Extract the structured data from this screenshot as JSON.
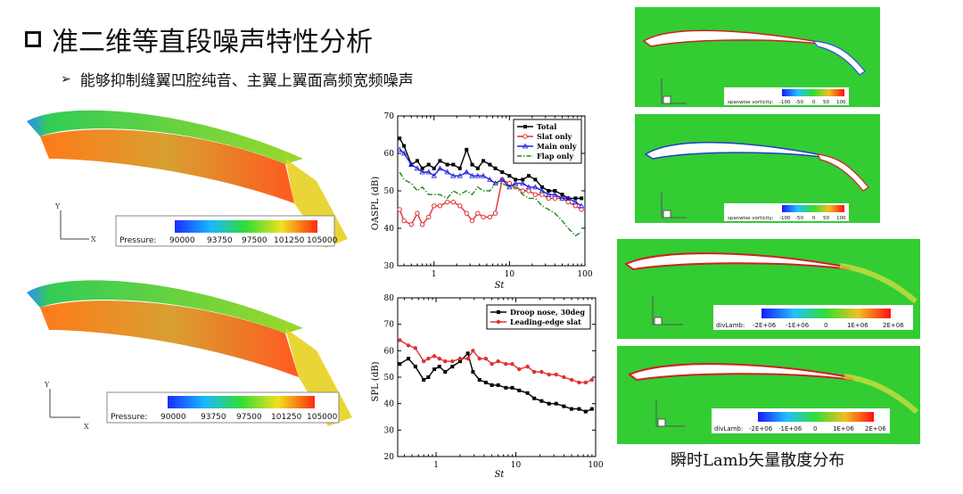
{
  "header": {
    "title": "准二维等直段噪声特性分析",
    "bullet": "能够抑制缝翼凹腔纯音、主翼上翼面高频宽频噪声"
  },
  "wing_views": [
    {
      "colorbar_label": "Pressure:",
      "ticks": [
        "90000",
        "93750",
        "97500",
        "101250",
        "105000"
      ]
    },
    {
      "colorbar_label": "Pressure:",
      "ticks": [
        "90000",
        "93750",
        "97500",
        "101250",
        "105000"
      ]
    }
  ],
  "vorticity_panels": [
    {
      "colorbar_label": "spanwise vorticity:",
      "ticks": [
        "-100",
        "-50",
        "0",
        "50",
        "100"
      ]
    },
    {
      "colorbar_label": "spanwise vorticity:",
      "ticks": [
        "-100",
        "-50",
        "0",
        "50",
        "100"
      ]
    }
  ],
  "lamb_panels": [
    {
      "colorbar_label": "divLamb:",
      "ticks": [
        "-2E+06",
        "-1E+06",
        "0",
        "1E+06",
        "2E+06"
      ]
    },
    {
      "colorbar_label": "divLamb:",
      "ticks": [
        "-2E+06",
        "-1E+06",
        "0",
        "1E+06",
        "2E+06"
      ]
    }
  ],
  "lamb_caption": "瞬时Lamb矢量散度分布",
  "chart_data": [
    {
      "type": "line",
      "xlabel": "St",
      "ylabel": "OASPL (dB)",
      "xscale": "log",
      "xlim": [
        0.33,
        100
      ],
      "ylim": [
        30,
        70
      ],
      "xticks": [
        "1",
        "10",
        "100"
      ],
      "yticks": [
        "30",
        "40",
        "50",
        "60",
        "70"
      ],
      "legend_position": "top-right",
      "series": [
        {
          "name": "Total",
          "color": "#000000",
          "style": "solid",
          "marker": "square",
          "x": [
            0.35,
            0.4,
            0.5,
            0.6,
            0.7,
            0.85,
            1.0,
            1.2,
            1.5,
            1.8,
            2.2,
            2.7,
            3.2,
            3.8,
            4.5,
            5.5,
            6.5,
            8,
            10,
            12,
            15,
            18,
            22,
            27,
            33,
            40,
            50,
            60,
            75,
            90
          ],
          "y": [
            64,
            62,
            57,
            58,
            56,
            57,
            56,
            58,
            57,
            57,
            56,
            61,
            57,
            56,
            58,
            57,
            56,
            55,
            54,
            53,
            53,
            54,
            53,
            51,
            50,
            50,
            49,
            48,
            48,
            48
          ]
        },
        {
          "name": "Slat only",
          "color": "#e03030",
          "style": "solid",
          "marker": "circle-open",
          "x": [
            0.35,
            0.4,
            0.5,
            0.6,
            0.7,
            0.85,
            1.0,
            1.2,
            1.5,
            1.8,
            2.2,
            2.7,
            3.2,
            3.8,
            4.5,
            5.5,
            6.5,
            8,
            10,
            12,
            15,
            18,
            22,
            27,
            33,
            40,
            50,
            60,
            75,
            90
          ],
          "y": [
            45,
            42,
            41,
            44,
            41,
            43,
            46,
            46,
            47,
            47,
            46,
            44,
            42,
            44,
            43,
            43,
            44,
            53,
            52,
            51,
            50,
            50,
            49,
            49,
            48,
            48,
            48,
            47,
            46,
            45
          ]
        },
        {
          "name": "Main only",
          "color": "#2020e0",
          "style": "solid",
          "marker": "triangle",
          "x": [
            0.35,
            0.4,
            0.5,
            0.6,
            0.7,
            0.85,
            1.0,
            1.2,
            1.5,
            1.8,
            2.2,
            2.7,
            3.2,
            3.8,
            4.5,
            5.5,
            6.5,
            8,
            10,
            12,
            15,
            18,
            22,
            27,
            33,
            40,
            50,
            60,
            75,
            90
          ],
          "y": [
            61,
            60,
            57,
            56,
            55,
            55,
            54,
            56,
            55,
            54,
            54,
            55,
            54,
            54,
            54,
            53,
            52,
            53,
            51,
            52,
            52,
            51,
            51,
            50,
            49,
            49,
            48,
            48,
            47,
            46
          ]
        },
        {
          "name": "Flap only",
          "color": "#1a8a1a",
          "style": "dashdot",
          "marker": "none",
          "x": [
            0.35,
            0.4,
            0.5,
            0.6,
            0.7,
            0.85,
            1.0,
            1.2,
            1.5,
            1.8,
            2.2,
            2.7,
            3.2,
            3.8,
            4.5,
            5.5,
            6.5,
            8,
            10,
            12,
            15,
            18,
            22,
            27,
            33,
            40,
            50,
            60,
            75,
            90
          ],
          "y": [
            55,
            53,
            52,
            50,
            51,
            49,
            49,
            49,
            48,
            50,
            49,
            50,
            49,
            51,
            50,
            50,
            52,
            52,
            51,
            51,
            49,
            48,
            48,
            46,
            45,
            44,
            42,
            40,
            38,
            39
          ]
        }
      ]
    },
    {
      "type": "line",
      "xlabel": "St",
      "ylabel": "SPL (dB)",
      "xscale": "log",
      "xlim": [
        0.33,
        100
      ],
      "ylim": [
        20,
        80
      ],
      "xticks": [
        "1",
        "10",
        "100"
      ],
      "yticks": [
        "20",
        "30",
        "40",
        "50",
        "60",
        "70",
        "80"
      ],
      "legend_position": "top-right",
      "series": [
        {
          "name": "Droop nose, 30deg",
          "color": "#000000",
          "style": "solid",
          "marker": "square",
          "x": [
            0.35,
            0.45,
            0.55,
            0.7,
            0.8,
            0.95,
            1.1,
            1.3,
            1.6,
            2.0,
            2.5,
            2.9,
            3.5,
            4.2,
            5,
            6,
            7.5,
            9,
            11,
            14,
            17,
            21,
            26,
            32,
            40,
            50,
            62,
            75,
            90
          ],
          "y": [
            55,
            57,
            54,
            49,
            50,
            53,
            54,
            52,
            54,
            56,
            59,
            52,
            49,
            48,
            47,
            47,
            46,
            46,
            45,
            44,
            42,
            41,
            40,
            40,
            39,
            38,
            38,
            37,
            38
          ]
        },
        {
          "name": "Leading-edge slat",
          "color": "#e03030",
          "style": "solid",
          "marker": "circle",
          "x": [
            0.35,
            0.45,
            0.55,
            0.7,
            0.8,
            0.95,
            1.1,
            1.3,
            1.6,
            2.0,
            2.5,
            2.9,
            3.5,
            4.2,
            5,
            6,
            7.5,
            9,
            11,
            14,
            17,
            21,
            26,
            32,
            40,
            50,
            62,
            75,
            90
          ],
          "y": [
            64,
            62,
            61,
            56,
            57,
            58,
            57,
            56,
            56,
            57,
            57,
            60,
            57,
            57,
            55,
            56,
            55,
            55,
            53,
            54,
            52,
            52,
            51,
            51,
            50,
            49,
            48,
            48,
            49
          ]
        }
      ]
    }
  ]
}
